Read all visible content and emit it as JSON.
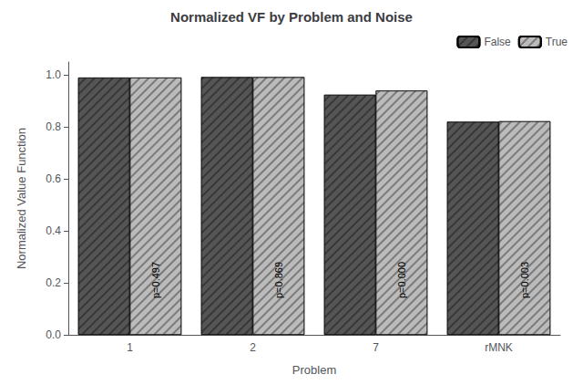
{
  "chart_data": {
    "type": "bar",
    "title": "Normalized VF by Problem and Noise",
    "xlabel": "Problem",
    "ylabel": "Normalized Value Function",
    "categories": [
      "1",
      "2",
      "7",
      "rMNK"
    ],
    "series": [
      {
        "name": "False",
        "color": "#555555",
        "values": [
          0.99,
          0.992,
          0.924,
          0.82
        ]
      },
      {
        "name": "True",
        "color": "#bbbbbb",
        "values": [
          0.99,
          0.992,
          0.94,
          0.822
        ]
      }
    ],
    "annotations": [
      "p=0.497",
      "p=0.869",
      "p=0.000",
      "p=0.003"
    ],
    "ylim": [
      0.0,
      1.05
    ],
    "yticks": [
      {
        "value": 0.0,
        "label": "0.0"
      },
      0.2,
      0.4,
      0.6,
      0.8,
      {
        "value": 1.0,
        "label": "1.0"
      }
    ],
    "grid": false,
    "legend": "upper right"
  }
}
